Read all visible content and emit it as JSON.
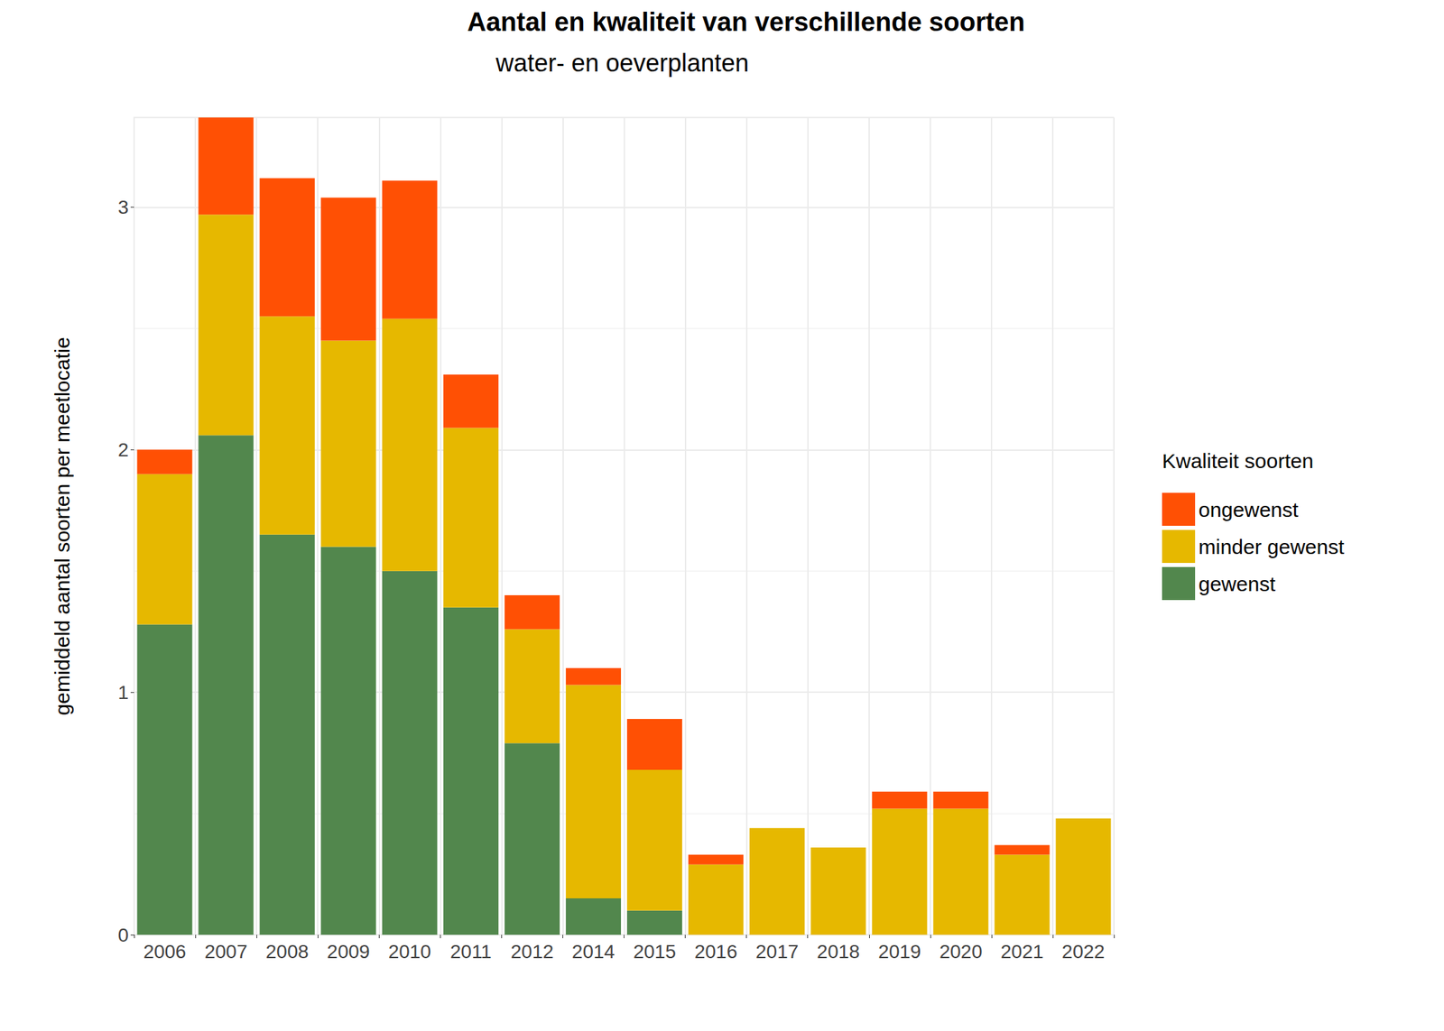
{
  "chart_data": {
    "type": "bar",
    "stacked": true,
    "grid": true,
    "legend": "right",
    "title": "Aantal en kwaliteit van verschillende soorten",
    "subtitle": "water- en oeverplanten",
    "y_label": "gemiddeld aantal soorten per meetlocatie",
    "legend_title": "Kwaliteit soorten",
    "categories": [
      "2006",
      "2007",
      "2008",
      "2009",
      "2010",
      "2011",
      "2012",
      "2014",
      "2015",
      "2016",
      "2017",
      "2018",
      "2019",
      "2020",
      "2021",
      "2022"
    ],
    "series": [
      {
        "name": "gewenst",
        "color": "#52874d",
        "values": [
          1.28,
          2.06,
          1.65,
          1.6,
          1.5,
          1.35,
          0.79,
          0.15,
          0.1,
          0,
          0,
          0,
          0,
          0,
          0,
          0
        ]
      },
      {
        "name": "minder gewenst",
        "color": "#e6b800",
        "values": [
          0.62,
          0.91,
          0.9,
          0.85,
          1.04,
          0.74,
          0.47,
          0.88,
          0.58,
          0.29,
          0.44,
          0.36,
          0.52,
          0.52,
          0.33,
          0.48
        ]
      },
      {
        "name": "ongewenst",
        "color": "#ff5004",
        "values": [
          0.1,
          0.4,
          0.57,
          0.59,
          0.57,
          0.22,
          0.14,
          0.07,
          0.21,
          0.04,
          0,
          0,
          0.07,
          0.07,
          0.04,
          0
        ]
      }
    ],
    "ylim": [
      0,
      3.37
    ],
    "yticks": [
      0,
      1,
      2,
      3
    ]
  }
}
